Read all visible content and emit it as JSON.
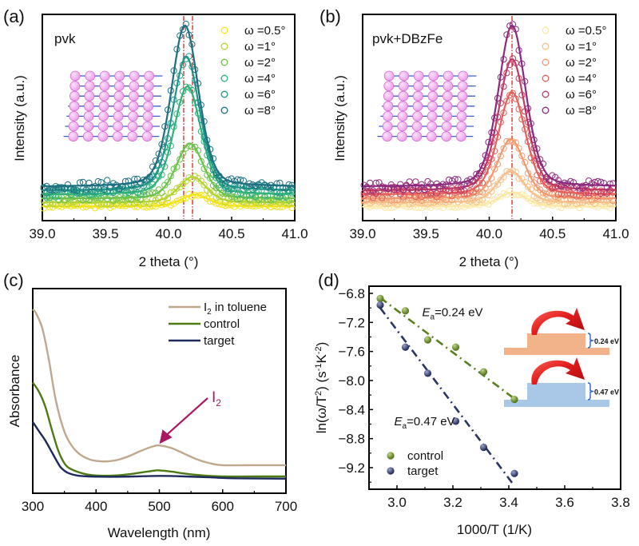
{
  "figure": {
    "panels": [
      "(a)",
      "(b)",
      "(c)",
      "(d)"
    ]
  },
  "chart_data": [
    {
      "id": "a",
      "type": "line",
      "panel_label": "(a)",
      "title": "",
      "inner_label": "pvk",
      "xlabel": "2 theta (°)",
      "ylabel": "Intensity (a.u.)",
      "xlim": [
        39.0,
        41.0
      ],
      "ylim": [
        0,
        1
      ],
      "xticks": [
        "39.0",
        "39.5",
        "40.0",
        "40.5",
        "41.0"
      ],
      "xtick_values": [
        39.0,
        39.5,
        40.0,
        40.5,
        41.0
      ],
      "legend_position": "top-right",
      "reference_lines": [
        40.12,
        40.19
      ],
      "reference_line_color": "#e0201e",
      "inset": "perovskite-lattice",
      "series": [
        {
          "name": "ω =0.5°",
          "color": "#f2e31a",
          "peak_center": 40.21,
          "peak_height": 0.06,
          "baseline": 0.04
        },
        {
          "name": "ω =1°",
          "color": "#b5d334",
          "peak_center": 40.19,
          "peak_height": 0.13,
          "baseline": 0.06
        },
        {
          "name": "ω =2°",
          "color": "#6cc24a",
          "peak_center": 40.17,
          "peak_height": 0.28,
          "baseline": 0.08
        },
        {
          "name": "ω =4°",
          "color": "#2fb27a",
          "peak_center": 40.15,
          "peak_height": 0.55,
          "baseline": 0.1
        },
        {
          "name": "ω =6°",
          "color": "#1f9688",
          "peak_center": 40.14,
          "peak_height": 0.68,
          "baseline": 0.12
        },
        {
          "name": "ω =8°",
          "color": "#1d6f80",
          "peak_center": 40.13,
          "peak_height": 0.82,
          "baseline": 0.14
        }
      ]
    },
    {
      "id": "b",
      "type": "line",
      "panel_label": "(b)",
      "title": "",
      "inner_label": "pvk+DBzFe",
      "xlabel": "2 theta (°)",
      "ylabel": "Intensity (a.u.)",
      "xlim": [
        39.0,
        41.0
      ],
      "ylim": [
        0,
        1
      ],
      "xticks": [
        "39.0",
        "39.5",
        "40.0",
        "40.5",
        "41.0"
      ],
      "xtick_values": [
        39.0,
        39.5,
        40.0,
        40.5,
        41.0
      ],
      "legend_position": "top-right",
      "reference_lines": [
        40.18
      ],
      "reference_line_color": "#e0201e",
      "inset": "perovskite-lattice",
      "series": [
        {
          "name": "ω =0.5°",
          "color": "#fbe8a6",
          "peak_center": 40.18,
          "peak_height": 0.07,
          "baseline": 0.04
        },
        {
          "name": "ω =1°",
          "color": "#f6c08a",
          "peak_center": 40.17,
          "peak_height": 0.16,
          "baseline": 0.06
        },
        {
          "name": "ω =2°",
          "color": "#f29a6e",
          "peak_center": 40.17,
          "peak_height": 0.3,
          "baseline": 0.08
        },
        {
          "name": "ω =4°",
          "color": "#e4605a",
          "peak_center": 40.18,
          "peak_height": 0.52,
          "baseline": 0.1
        },
        {
          "name": "ω =6°",
          "color": "#c23a63",
          "peak_center": 40.18,
          "peak_height": 0.67,
          "baseline": 0.12
        },
        {
          "name": "ω =8°",
          "color": "#8b2a7e",
          "peak_center": 40.18,
          "peak_height": 0.82,
          "baseline": 0.14
        }
      ]
    },
    {
      "id": "c",
      "type": "line",
      "panel_label": "(c)",
      "title": "",
      "xlabel": "Wavelength (nm)",
      "ylabel": "Absorbance",
      "xlim": [
        300,
        700
      ],
      "ylim": [
        0,
        1
      ],
      "xticks": [
        "300",
        "400",
        "500",
        "600",
        "700"
      ],
      "xtick_values": [
        300,
        400,
        500,
        600,
        700
      ],
      "legend_position": "top-right",
      "annotation": {
        "text": "I",
        "subscript": "2",
        "color": "#a8175f",
        "points_to_x": 500
      },
      "series": [
        {
          "name": "I₂ in toluene",
          "label_main": "I",
          "label_sub": "2",
          "label_rest": " in toluene",
          "color": "#bfa88e",
          "x": [
            300,
            305,
            315,
            325,
            335,
            345,
            355,
            370,
            390,
            410,
            430,
            450,
            470,
            490,
            500,
            520,
            540,
            560,
            580,
            600,
            650,
            700
          ],
          "y": [
            0.92,
            0.9,
            0.82,
            0.66,
            0.46,
            0.32,
            0.23,
            0.16,
            0.12,
            0.11,
            0.115,
            0.135,
            0.165,
            0.19,
            0.195,
            0.18,
            0.15,
            0.12,
            0.1,
            0.09,
            0.09,
            0.09
          ]
        },
        {
          "name": "control",
          "label_main": "control",
          "label_sub": "",
          "label_rest": "",
          "color": "#4e7a14",
          "x": [
            300,
            310,
            320,
            330,
            340,
            350,
            360,
            380,
            400,
            430,
            460,
            490,
            500,
            520,
            540,
            570,
            600,
            650,
            700
          ],
          "y": [
            0.53,
            0.48,
            0.4,
            0.28,
            0.17,
            0.1,
            0.07,
            0.045,
            0.035,
            0.035,
            0.045,
            0.06,
            0.062,
            0.055,
            0.045,
            0.035,
            0.03,
            0.03,
            0.03
          ]
        },
        {
          "name": "target",
          "label_main": "target",
          "label_sub": "",
          "label_rest": "",
          "color": "#1e2a5c",
          "x": [
            300,
            310,
            320,
            330,
            340,
            345,
            355,
            370,
            390,
            420,
            460,
            500,
            540,
            580,
            620,
            700
          ],
          "y": [
            0.32,
            0.27,
            0.22,
            0.16,
            0.1,
            0.075,
            0.05,
            0.035,
            0.03,
            0.028,
            0.03,
            0.033,
            0.03,
            0.025,
            0.02,
            0.018
          ]
        }
      ]
    },
    {
      "id": "d",
      "type": "scatter",
      "panel_label": "(d)",
      "title": "",
      "xlabel": "1000/T (1/K)",
      "ylabel": "ln(ω/T²) (s⁻¹K⁻²)",
      "xlim": [
        2.9,
        3.8
      ],
      "ylim": [
        -9.5,
        -6.7
      ],
      "xticks": [
        "3.0",
        "3.2",
        "3.4",
        "3.6",
        "3.8"
      ],
      "xtick_values": [
        3.0,
        3.2,
        3.4,
        3.6,
        3.8
      ],
      "yticks": [
        "-6.8",
        "-7.2",
        "-7.6",
        "-8.0",
        "-8.4",
        "-8.8",
        "-9.2"
      ],
      "ytick_values": [
        -6.8,
        -7.2,
        -7.6,
        -8.0,
        -8.4,
        -8.8,
        -9.2
      ],
      "legend_position": "bottom-left",
      "annotations": [
        {
          "text_italic": "E",
          "sub": "a",
          "text": "=0.24 eV",
          "x": 3.09,
          "y": -7.05
        },
        {
          "text_italic": "E",
          "sub": "a",
          "text": "=0.47 eV",
          "x": 2.99,
          "y": -8.55
        }
      ],
      "inset": {
        "barriers": [
          {
            "label": "0.24 eV",
            "color": "#f2b28a"
          },
          {
            "label": "0.47 eV",
            "color": "#a9c8e8"
          }
        ],
        "arrow_color": "#e01b1b",
        "bracket_color": "#2f62c4"
      },
      "series": [
        {
          "name": "control",
          "color": "#5b7f1e",
          "x": [
            2.94,
            3.03,
            3.11,
            3.21,
            3.31,
            3.42
          ],
          "y": [
            -6.87,
            -7.04,
            -7.44,
            -7.54,
            -7.88,
            -8.26
          ],
          "fit": {
            "x": [
              2.94,
              3.42
            ],
            "y": [
              -6.86,
              -8.25
            ]
          }
        },
        {
          "name": "target",
          "color": "#2a3564",
          "x": [
            2.94,
            3.03,
            3.11,
            3.21,
            3.31,
            3.42
          ],
          "y": [
            -6.96,
            -7.54,
            -7.9,
            -8.56,
            -8.92,
            -9.28
          ],
          "fit": {
            "x": [
              2.94,
              3.42
            ],
            "y": [
              -7.0,
              -9.45
            ]
          }
        }
      ]
    }
  ]
}
